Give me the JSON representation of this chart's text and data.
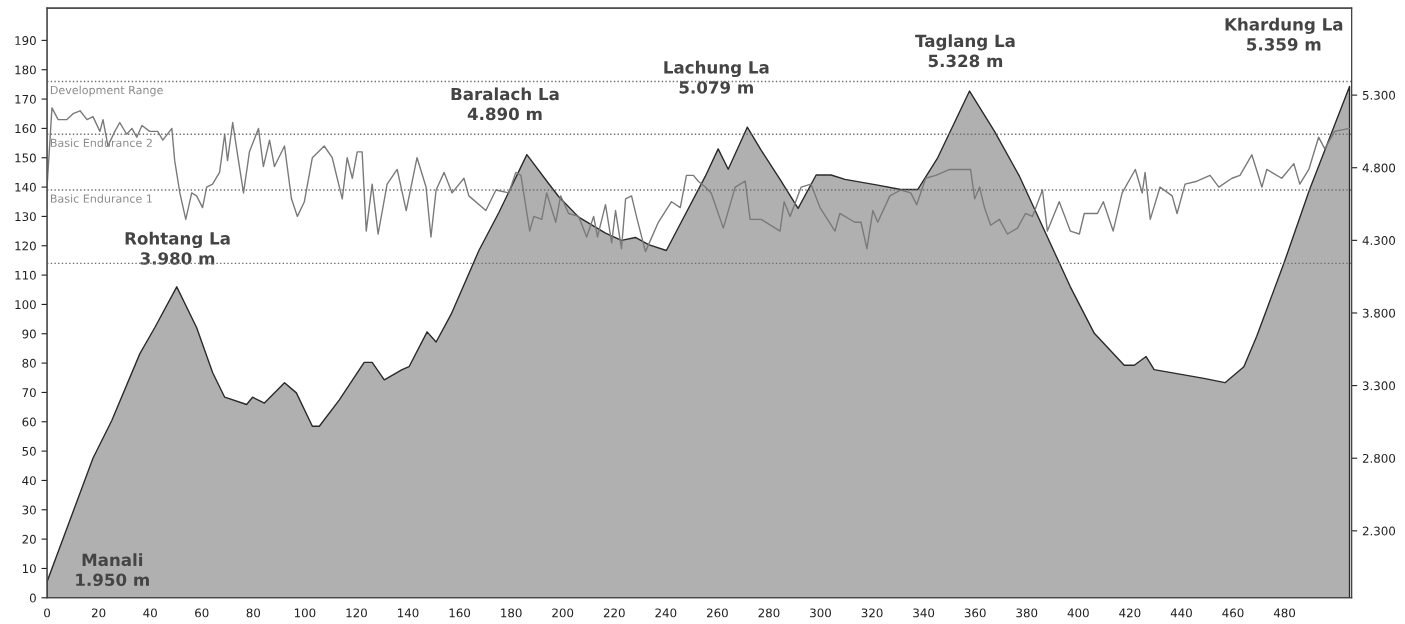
{
  "chart_data": {
    "type": "line",
    "xlim": [
      0,
      506
    ],
    "xticks": [
      0,
      20,
      40,
      60,
      80,
      100,
      120,
      140,
      160,
      180,
      200,
      220,
      240,
      260,
      280,
      300,
      320,
      340,
      360,
      380,
      400,
      420,
      440,
      460,
      480
    ],
    "ylim": [
      0,
      201
    ],
    "yticks": [
      0,
      10,
      20,
      30,
      40,
      50,
      60,
      70,
      80,
      90,
      100,
      110,
      120,
      130,
      140,
      150,
      160,
      170,
      180,
      190
    ],
    "y2lim": [
      1839,
      5899
    ],
    "y2ticks": [
      {
        "value": 2300,
        "label": "2.300"
      },
      {
        "value": 2800,
        "label": "2.800"
      },
      {
        "value": 3300,
        "label": "3.300"
      },
      {
        "value": 3800,
        "label": "3.800"
      },
      {
        "value": 4300,
        "label": "4.300"
      },
      {
        "value": 4800,
        "label": "4.800"
      },
      {
        "value": 5300,
        "label": "5.300"
      }
    ],
    "series": [
      {
        "type": "area",
        "axis": "y2",
        "color": "#b0b0b0",
        "x": [
          0,
          17.8,
          25.1,
          36.0,
          41.8,
          50.3,
          58.0,
          64.2,
          68.9,
          77.4,
          79.7,
          84.3,
          92.1,
          96.7,
          102.9,
          105.6,
          113.3,
          123.0,
          126.1,
          130.8,
          137.7,
          140.4,
          147.4,
          150.9,
          156.7,
          167.5,
          175.2,
          186.1,
          194.6,
          198.5,
          206.2,
          216.6,
          222.8,
          228.2,
          233.3,
          240.2,
          255.3,
          260.3,
          264.2,
          271.6,
          277.0,
          284.3,
          291.3,
          298.3,
          304.1,
          309.5,
          322.2,
          331.1,
          337.7,
          345.5,
          357.8,
          367.5,
          377.2,
          386.8,
          396.9,
          406.2,
          417.8,
          421.7,
          426.3,
          429.4,
          448.7,
          456.9,
          464.2,
          469.2,
          479.7,
          489.7,
          505.2
        ],
        "values": [
          1950,
          2800,
          3060,
          3520,
          3700,
          3980,
          3700,
          3390,
          3220,
          3170,
          3220,
          3180,
          3320,
          3250,
          3020,
          3020,
          3200,
          3460,
          3460,
          3340,
          3410,
          3430,
          3670,
          3600,
          3790,
          4230,
          4490,
          4890,
          4690,
          4600,
          4460,
          4350,
          4300,
          4320,
          4270,
          4230,
          4740,
          4930,
          4790,
          5079,
          4920,
          4720,
          4520,
          4750,
          4750,
          4720,
          4680,
          4650,
          4650,
          4870,
          5328,
          5050,
          4740,
          4370,
          3980,
          3660,
          3440,
          3440,
          3500,
          3410,
          3350,
          3320,
          3430,
          3640,
          4140,
          4650,
          5359
        ]
      },
      {
        "axis": "y",
        "color": "#7a7a7a",
        "x": [
          0,
          1.9,
          4.3,
          7.7,
          10.1,
          12.8,
          15.5,
          17.8,
          20.5,
          21.7,
          23.6,
          26.3,
          28.2,
          30.9,
          32.9,
          34.8,
          36.8,
          39.8,
          42.9,
          44.9,
          48.4,
          49.5,
          51.5,
          53.8,
          56.1,
          58.0,
          60.3,
          61.9,
          64.2,
          66.9,
          68.9,
          70.0,
          72.0,
          73.9,
          76.2,
          78.5,
          82.0,
          83.9,
          86.3,
          88.2,
          92.1,
          94.8,
          97.1,
          99.8,
          102.9,
          107.5,
          110.6,
          114.5,
          116.4,
          118.4,
          120.3,
          122.2,
          123.8,
          126.1,
          128.4,
          131.9,
          135.8,
          139.3,
          143.5,
          147.0,
          148.9,
          150.9,
          154.0,
          157.1,
          161.7,
          163.6,
          170.2,
          174.1,
          179.1,
          181.8,
          183.8,
          187.2,
          188.8,
          191.9,
          193.8,
          197.3,
          199.2,
          202.3,
          206.2,
          209.3,
          212.0,
          213.5,
          216.6,
          219.0,
          220.5,
          222.8,
          224.4,
          226.7,
          228.6,
          232.1,
          237.1,
          242.2,
          245.6,
          248.0,
          250.7,
          252.6,
          255.3,
          257.6,
          262.3,
          266.9,
          270.8,
          272.7,
          277.0,
          284.3,
          285.9,
          288.2,
          292.5,
          296.3,
          299.8,
          305.6,
          307.5,
          313.3,
          315.7,
          318.0,
          320.3,
          322.2,
          326.9,
          331.1,
          335.0,
          337.3,
          340.8,
          344.7,
          350.1,
          354.0,
          358.2,
          359.8,
          361.7,
          363.6,
          366.0,
          369.4,
          372.5,
          376.4,
          379.5,
          382.2,
          386.1,
          388.0,
          392.6,
          396.9,
          400.4,
          402.3,
          407.4,
          409.7,
          413.5,
          417.0,
          422.1,
          424.8,
          425.9,
          427.9,
          431.7,
          436.4,
          438.3,
          441.4,
          446.0,
          451.1,
          454.5,
          459.6,
          462.7,
          467.3,
          471.2,
          473.1,
          478.9,
          483.6,
          485.9,
          489.4,
          493.2,
          495.6,
          499.4,
          505.2
        ],
        "values": [
          140,
          167,
          163,
          163,
          165,
          166,
          163,
          164,
          159,
          163,
          154,
          159,
          162,
          158,
          160,
          157,
          161,
          159,
          159,
          156,
          160,
          149,
          138,
          129,
          138,
          137,
          133,
          140,
          141,
          145,
          158,
          149,
          162,
          151,
          138,
          152,
          160,
          147,
          156,
          147,
          154,
          136,
          130,
          135,
          150,
          154,
          150,
          136,
          150,
          143,
          152,
          152,
          125,
          141,
          124,
          141,
          146,
          132,
          150,
          140,
          123,
          139,
          145,
          138,
          143,
          137,
          132,
          139,
          138,
          145,
          144,
          125,
          130,
          129,
          138,
          128,
          137,
          131,
          130,
          123,
          130,
          123,
          134,
          121,
          132,
          119,
          136,
          137,
          130,
          118,
          128,
          135,
          133,
          144,
          144,
          142,
          140,
          138,
          126,
          140,
          142,
          129,
          129,
          125,
          135,
          130,
          140,
          141,
          133,
          125,
          131,
          128,
          128,
          119,
          132,
          128,
          137,
          139,
          138,
          134,
          143,
          144,
          146,
          146,
          146,
          136,
          140,
          133,
          127,
          129,
          124,
          126,
          131,
          130,
          139,
          125,
          135,
          125,
          124,
          131,
          131,
          135,
          125,
          138,
          146,
          138,
          145,
          129,
          140,
          137,
          131,
          141,
          142,
          144,
          140,
          143,
          144,
          151,
          140,
          146,
          143,
          148,
          141,
          146,
          157,
          153,
          159,
          160
        ]
      }
    ],
    "ref_lines": [
      {
        "axis": "y",
        "value": 176,
        "label": "Development Range",
        "color": "#6e6e6e",
        "line_style": "dotted"
      },
      {
        "axis": "y",
        "value": 158,
        "label": "Basic Endurance 2",
        "color": "#6e6e6e",
        "line_style": "dotted"
      },
      {
        "axis": "y",
        "value": 139,
        "label": "Basic Endurance 1",
        "color": "#6e6e6e",
        "line_style": "dotted"
      },
      {
        "axis": "y",
        "value": 114,
        "label": null,
        "color": "#6e6e6e",
        "line_style": "dotted"
      }
    ],
    "annotations": [
      "Manali\n1.950 m",
      "Rohtang La\n3.980 m",
      "Baralach La\n4.890 m",
      "Lachung La\n5.079 m",
      "Taglang La\n5.328 m",
      "Khardung La\n5.359 m"
    ]
  }
}
